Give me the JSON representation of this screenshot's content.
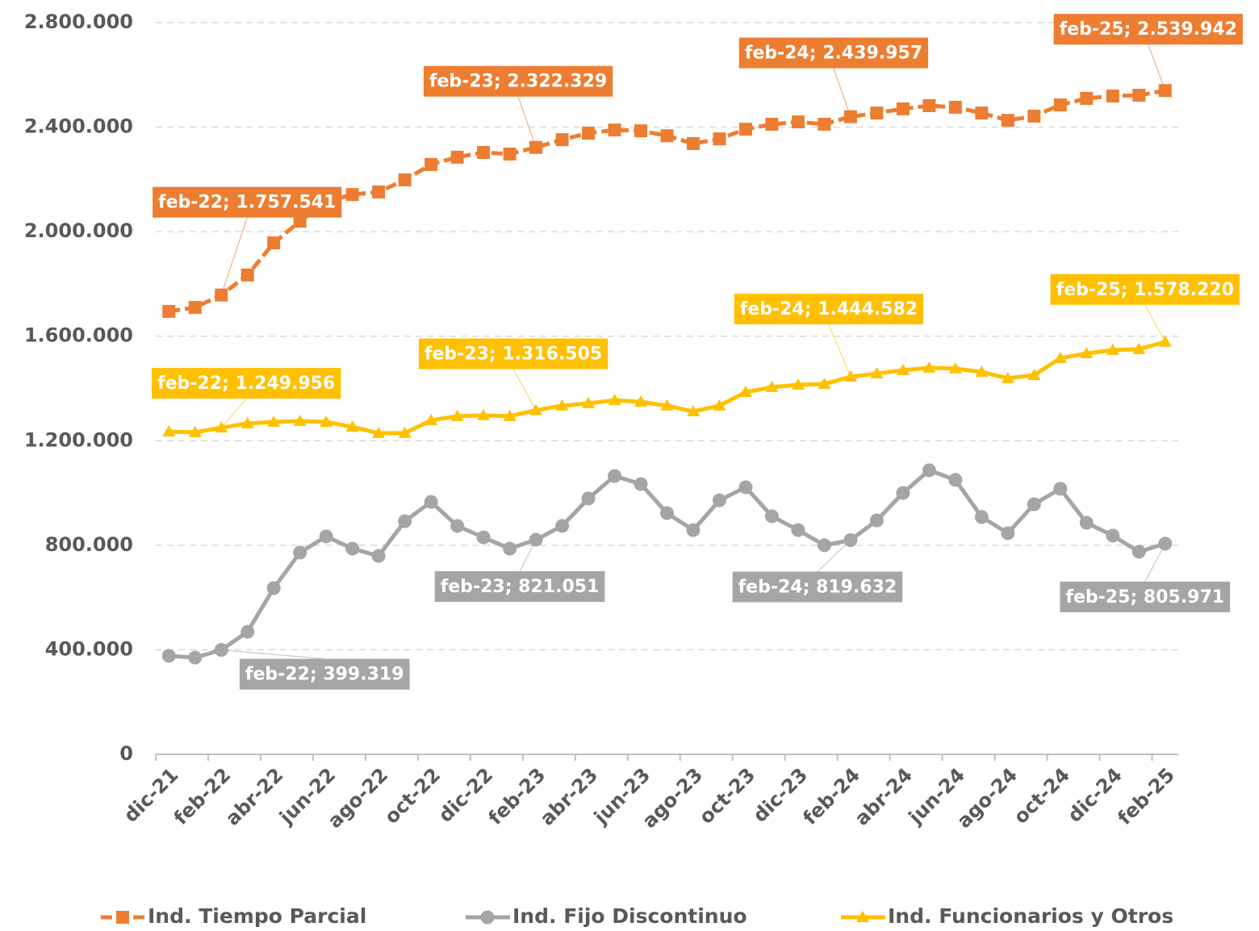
{
  "chart_data": {
    "type": "line",
    "categories": [
      "dic-21",
      null,
      "feb-22",
      null,
      "abr-22",
      null,
      "jun-22",
      null,
      "ago-22",
      null,
      "oct-22",
      null,
      "dic-22",
      null,
      "feb-23",
      null,
      "abr-23",
      null,
      "jun-23",
      null,
      "ago-23",
      null,
      "oct-23",
      null,
      "dic-23",
      null,
      "feb-24",
      null,
      "abr-24",
      null,
      "jun-24",
      null,
      "ago-24",
      null,
      "oct-24",
      null,
      "dic-24",
      null,
      "feb-25"
    ],
    "series": [
      {
        "name": "Ind. Tiempo Parcial",
        "color": "#ed7d31",
        "marker": "square",
        "dashed": true,
        "values": [
          1695000,
          1710000,
          1757541,
          1834000,
          1957000,
          2040000,
          2115000,
          2142000,
          2152000,
          2198000,
          2257000,
          2285000,
          2303000,
          2297000,
          2322329,
          2352000,
          2377000,
          2389000,
          2386000,
          2367000,
          2337000,
          2355000,
          2392000,
          2411000,
          2420000,
          2411000,
          2439957,
          2454000,
          2470000,
          2482000,
          2476000,
          2454000,
          2426000,
          2442000,
          2485000,
          2510000,
          2519000,
          2522000,
          2539942
        ],
        "value_labels": [
          null,
          null,
          "feb-22; 1.757.541",
          null,
          null,
          null,
          null,
          null,
          null,
          null,
          null,
          null,
          null,
          null,
          "feb-23; 2.322.329",
          null,
          null,
          null,
          null,
          null,
          null,
          null,
          null,
          null,
          null,
          null,
          "feb-24; 2.439.957",
          null,
          null,
          null,
          null,
          null,
          null,
          null,
          null,
          null,
          null,
          null,
          "feb-25; 2.539.942"
        ]
      },
      {
        "name": "Ind. Fijo Discontinuo",
        "color": "#a5a5a5",
        "marker": "circle",
        "dashed": false,
        "values": [
          377000,
          370000,
          399319,
          469000,
          636000,
          772000,
          834000,
          787000,
          759000,
          892000,
          966000,
          874000,
          830000,
          787000,
          821051,
          874000,
          979000,
          1065000,
          1034000,
          923000,
          858000,
          972000,
          1022000,
          911000,
          858000,
          800000,
          819632,
          895000,
          1000000,
          1087000,
          1050000,
          908000,
          846000,
          957000,
          1016000,
          886000,
          837000,
          775000,
          805971
        ],
        "value_labels": [
          null,
          null,
          "feb-22; 399.319",
          null,
          null,
          null,
          null,
          null,
          null,
          null,
          null,
          null,
          null,
          null,
          "feb-23; 821.051",
          null,
          null,
          null,
          null,
          null,
          null,
          null,
          null,
          null,
          null,
          null,
          "feb-24; 819.632",
          null,
          null,
          null,
          null,
          null,
          null,
          null,
          null,
          null,
          null,
          null,
          "feb-25; 805.971"
        ]
      },
      {
        "name": "Ind. Funcionarios y Otros",
        "color": "#ffc000",
        "marker": "triangle",
        "dashed": false,
        "values": [
          1235000,
          1232000,
          1249956,
          1266000,
          1272000,
          1275000,
          1272000,
          1253000,
          1229000,
          1229000,
          1278000,
          1294000,
          1297000,
          1294000,
          1316505,
          1334000,
          1343000,
          1355000,
          1349000,
          1334000,
          1312000,
          1334000,
          1386000,
          1405000,
          1414000,
          1417000,
          1444582,
          1457000,
          1470000,
          1479000,
          1476000,
          1463000,
          1439000,
          1451000,
          1516000,
          1534000,
          1547000,
          1550000,
          1578220
        ],
        "value_labels": [
          null,
          null,
          "feb-22; 1.249.956",
          null,
          null,
          null,
          null,
          null,
          null,
          null,
          null,
          null,
          null,
          null,
          "feb-23; 1.316.505",
          null,
          null,
          null,
          null,
          null,
          null,
          null,
          null,
          null,
          null,
          null,
          "feb-24; 1.444.582",
          null,
          null,
          null,
          null,
          null,
          null,
          null,
          null,
          null,
          null,
          null,
          "feb-25; 1.578.220"
        ]
      }
    ],
    "ylim": [
      0,
      2800000
    ],
    "yticks": [
      0,
      {
        "value": 400000,
        "label": "400.000"
      },
      {
        "value": 800000,
        "label": "800.000"
      },
      {
        "value": 1200000,
        "label": "1.200.000"
      },
      {
        "value": 1600000,
        "label": "1.600.000"
      },
      {
        "value": 2000000,
        "label": "2.000.000"
      },
      {
        "value": 2400000,
        "label": "2.400.000"
      },
      {
        "value": 2800000,
        "label": "2.800.000"
      }
    ],
    "grid": true,
    "legend": "bottom"
  }
}
